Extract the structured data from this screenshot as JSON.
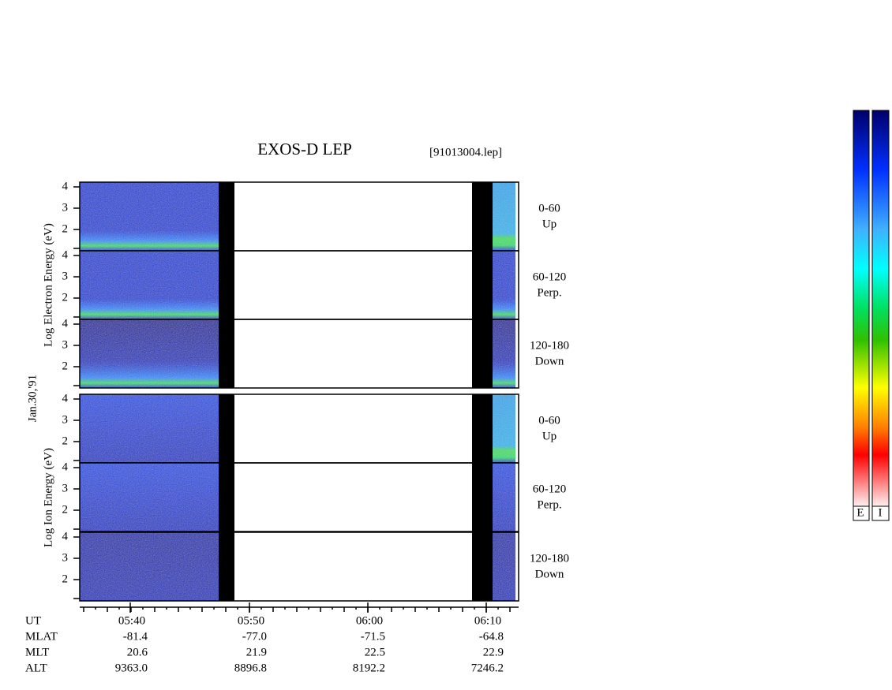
{
  "title": "EXOS-D LEP",
  "file": "[91013004.lep]",
  "date": "Jan.30,'91",
  "groups": [
    {
      "label": "Log Electron Energy (eV)",
      "panels": [
        {
          "range": "0-60",
          "direction": "Up"
        },
        {
          "range": "60-120",
          "direction": "Perp."
        },
        {
          "range": "120-180",
          "direction": "Down"
        }
      ]
    },
    {
      "label": "Log Ion Energy (eV)",
      "panels": [
        {
          "range": "0-60",
          "direction": "Up"
        },
        {
          "range": "60-120",
          "direction": "Perp."
        },
        {
          "range": "120-180",
          "direction": "Down"
        }
      ]
    }
  ],
  "ytick_labels": [
    "4",
    "3",
    "2"
  ],
  "time_label": "UT",
  "time_ticks": [
    "05:40",
    "05:50",
    "06:00",
    "06:10"
  ],
  "orbit_rows": [
    {
      "name": "MLAT",
      "values": [
        "-81.4",
        "-77.0",
        "-71.5",
        "-64.8"
      ]
    },
    {
      "name": "MLT",
      "values": [
        "20.6",
        "21.9",
        "22.5",
        "22.9"
      ]
    },
    {
      "name": "ALT",
      "values": [
        "9363.0",
        "8896.8",
        "8192.2",
        "7246.2"
      ]
    }
  ],
  "colorbar_labels": [
    "E",
    "I"
  ]
}
